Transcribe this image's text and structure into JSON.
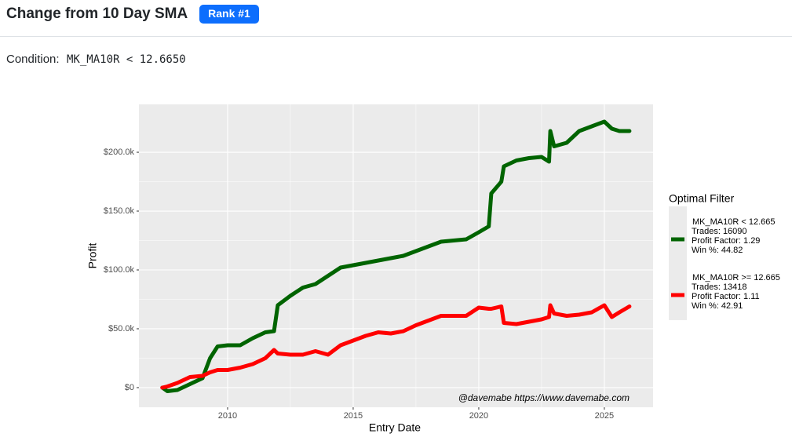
{
  "header": {
    "title": "Change from 10 Day SMA",
    "badge": "Rank #1"
  },
  "condition": {
    "label": "Condition:",
    "value": "MK_MA10R < 12.6650"
  },
  "chart_data": {
    "type": "line",
    "x_label": "Entry Date",
    "y_label": "Profit",
    "annotation": "@davemabe https://www.davemabe.com",
    "legend_title": "Optimal Filter",
    "legend_position": "right",
    "grid": true,
    "xlim": [
      2006.47,
      2026.94
    ],
    "xticks": [
      2010,
      2015,
      2020,
      2025
    ],
    "ylim": [
      -16700,
      240700
    ],
    "yticks": [
      {
        "value": 0,
        "label": "$0"
      },
      {
        "value": 50000,
        "label": "$50.0k"
      },
      {
        "value": 100000,
        "label": "$100.0k"
      },
      {
        "value": 150000,
        "label": "$150.0k"
      },
      {
        "value": 200000,
        "label": "$200.0k"
      }
    ],
    "x": [
      2007.4,
      2007.6,
      2008,
      2008.5,
      2009,
      2009.3,
      2009.6,
      2010,
      2010.5,
      2011,
      2011.5,
      2011.85,
      2012,
      2012.5,
      2013,
      2013.5,
      2014,
      2014.5,
      2015,
      2015.5,
      2016,
      2016.5,
      2017,
      2017.5,
      2018,
      2018.5,
      2019,
      2019.5,
      2020,
      2020.4,
      2020.5,
      2020.9,
      2021,
      2021.5,
      2022,
      2022.5,
      2022.8,
      2022.85,
      2023,
      2023.5,
      2024,
      2024.5,
      2025,
      2025.3,
      2025.6,
      2026
    ],
    "series": [
      {
        "name": "MK_MA10R < 12.665",
        "color": "#006400",
        "details": [
          "Trades: 16090",
          "Profit Factor: 1.29",
          "Win %: 44.82"
        ],
        "values": [
          0,
          -3000,
          -2000,
          3000,
          8000,
          25000,
          35000,
          36000,
          36000,
          42000,
          47000,
          48000,
          70000,
          78000,
          85000,
          88000,
          95000,
          102000,
          104000,
          106000,
          108000,
          110000,
          112000,
          116000,
          120000,
          124000,
          125000,
          126000,
          132000,
          137000,
          165000,
          175000,
          188000,
          193000,
          195000,
          196000,
          192000,
          218000,
          205000,
          208000,
          218000,
          222000,
          226000,
          220000,
          218000,
          218000
        ]
      },
      {
        "name": "MK_MA10R >= 12.665",
        "color": "#ff0000",
        "details": [
          "Trades: 13418",
          "Profit Factor: 1.11",
          "Win %: 42.91"
        ],
        "values": [
          0,
          1000,
          4000,
          9000,
          10000,
          13000,
          15000,
          15000,
          17000,
          20000,
          25000,
          32000,
          29000,
          28000,
          28000,
          31000,
          28000,
          36000,
          40000,
          44000,
          47000,
          46000,
          48000,
          53000,
          57000,
          61000,
          61000,
          61000,
          68000,
          67000,
          67000,
          69000,
          55000,
          54000,
          56000,
          58000,
          60000,
          70000,
          63000,
          61000,
          62000,
          64000,
          70000,
          60000,
          64000,
          69000
        ]
      }
    ]
  }
}
